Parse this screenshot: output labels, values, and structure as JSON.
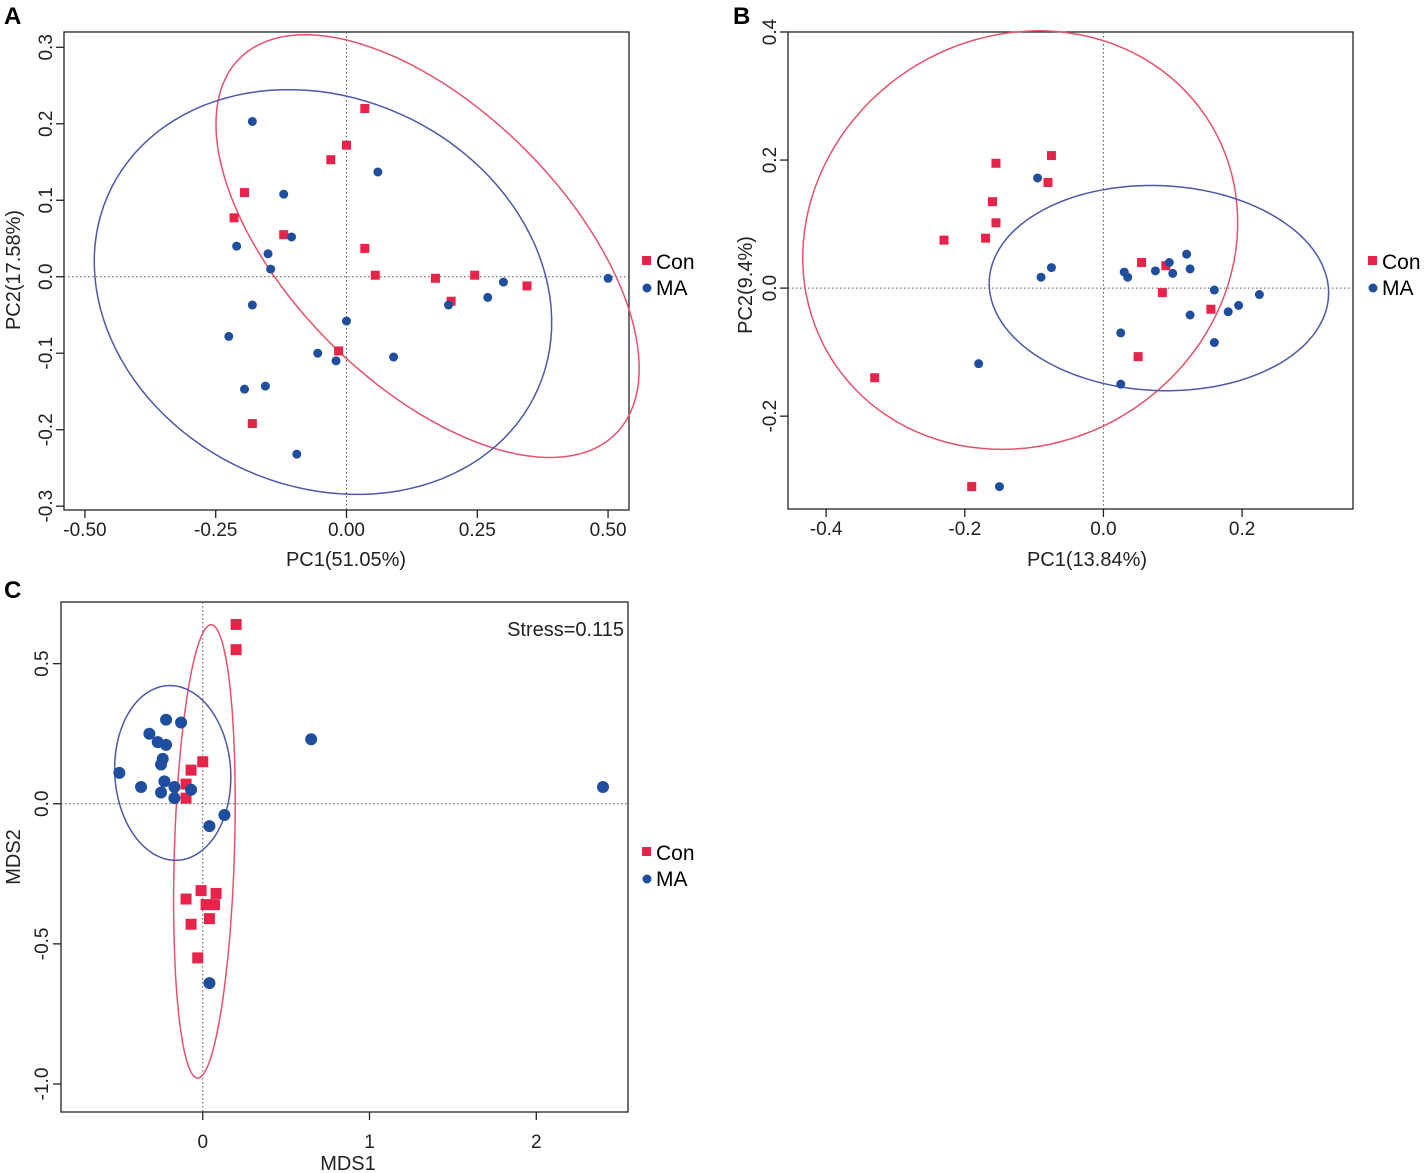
{
  "colors": {
    "con": "#e8234a",
    "ma": "#1f4e9e",
    "con_ellipse": "#e8506c",
    "ma_ellipse": "#4a59a8"
  },
  "chart_data": [
    {
      "panel": "A",
      "type": "scatter",
      "xlabel": "PC1(51.05%)",
      "ylabel": "PC2(17.58%)",
      "xlim": [
        -0.54,
        0.54
      ],
      "ylim": [
        -0.305,
        0.32
      ],
      "xticks": [
        -0.5,
        -0.25,
        0.0,
        0.25,
        0.5
      ],
      "xtick_labels": [
        "-0.50",
        "-0.25",
        "0.00",
        "0.25",
        "0.50"
      ],
      "yticks": [
        -0.3,
        -0.2,
        -0.1,
        0.0,
        0.1,
        0.2,
        0.3
      ],
      "ytick_labels": [
        "-0.3",
        "-0.2",
        "-0.1",
        "0.0",
        "0.1",
        "0.2",
        "0.3"
      ],
      "refline_x": 0,
      "refline_y": 0,
      "legend": [
        {
          "label": "Con",
          "marker": "square"
        },
        {
          "label": "MA",
          "marker": "circle"
        }
      ],
      "series": [
        {
          "name": "Con",
          "marker": "square",
          "points": [
            [
              0.035,
              0.22
            ],
            [
              0.0,
              0.172
            ],
            [
              -0.03,
              0.153
            ],
            [
              -0.195,
              0.11
            ],
            [
              -0.215,
              0.077
            ],
            [
              -0.12,
              0.055
            ],
            [
              0.035,
              0.037
            ],
            [
              0.055,
              0.002
            ],
            [
              0.17,
              -0.002
            ],
            [
              0.245,
              0.002
            ],
            [
              0.345,
              -0.012
            ],
            [
              0.2,
              -0.032
            ],
            [
              -0.015,
              -0.097
            ],
            [
              -0.18,
              -0.192
            ]
          ]
        },
        {
          "name": "MA",
          "marker": "circle",
          "points": [
            [
              -0.18,
              0.203
            ],
            [
              0.06,
              0.137
            ],
            [
              -0.12,
              0.108
            ],
            [
              -0.105,
              0.052
            ],
            [
              -0.21,
              0.04
            ],
            [
              -0.15,
              0.03
            ],
            [
              -0.145,
              0.01
            ],
            [
              -0.18,
              -0.037
            ],
            [
              -0.225,
              -0.078
            ],
            [
              0.0,
              -0.058
            ],
            [
              -0.055,
              -0.1
            ],
            [
              -0.02,
              -0.11
            ],
            [
              0.09,
              -0.105
            ],
            [
              -0.195,
              -0.147
            ],
            [
              -0.155,
              -0.143
            ],
            [
              -0.095,
              -0.232
            ],
            [
              0.3,
              -0.007
            ],
            [
              0.5,
              -0.002
            ],
            [
              0.27,
              -0.027
            ],
            [
              0.195,
              -0.037
            ]
          ]
        }
      ],
      "ellipses": [
        {
          "name": "Con",
          "cx": 0.155,
          "cy": 0.04,
          "rx": 0.445,
          "ry": 0.205,
          "angle_deg": -28
        },
        {
          "name": "MA",
          "cx": -0.045,
          "cy": -0.02,
          "rx": 0.44,
          "ry": 0.26,
          "angle_deg": -8
        }
      ]
    },
    {
      "panel": "B",
      "type": "scatter",
      "xlabel": "PC1(13.84%)",
      "ylabel": "PC2(9.4%)",
      "xlim": [
        -0.455,
        0.36
      ],
      "ylim": [
        -0.345,
        0.4
      ],
      "xticks": [
        -0.4,
        -0.2,
        0.0,
        0.2
      ],
      "xtick_labels": [
        "-0.4",
        "-0.2",
        "0.0",
        "0.2"
      ],
      "yticks": [
        -0.2,
        0.0,
        0.2,
        0.4
      ],
      "ytick_labels": [
        "-0.2",
        "0.0",
        "0.2",
        "0.4"
      ],
      "refline_x": 0,
      "refline_y": 0,
      "legend": [
        {
          "label": "Con",
          "marker": "square"
        },
        {
          "label": "MA",
          "marker": "circle"
        }
      ],
      "series": [
        {
          "name": "Con",
          "marker": "square",
          "points": [
            [
              -0.075,
              0.207
            ],
            [
              -0.155,
              0.195
            ],
            [
              -0.08,
              0.165
            ],
            [
              -0.16,
              0.135
            ],
            [
              -0.155,
              0.102
            ],
            [
              -0.17,
              0.078
            ],
            [
              -0.23,
              0.075
            ],
            [
              0.055,
              0.04
            ],
            [
              0.09,
              0.035
            ],
            [
              0.085,
              -0.007
            ],
            [
              0.155,
              -0.033
            ],
            [
              0.05,
              -0.107
            ],
            [
              -0.33,
              -0.14
            ],
            [
              -0.19,
              -0.31
            ]
          ]
        },
        {
          "name": "MA",
          "marker": "circle",
          "points": [
            [
              -0.095,
              0.172
            ],
            [
              -0.075,
              0.032
            ],
            [
              -0.09,
              0.017
            ],
            [
              0.03,
              0.025
            ],
            [
              0.035,
              0.017
            ],
            [
              0.075,
              0.027
            ],
            [
              0.095,
              0.04
            ],
            [
              0.1,
              0.023
            ],
            [
              0.12,
              0.053
            ],
            [
              0.125,
              0.03
            ],
            [
              0.16,
              -0.003
            ],
            [
              0.18,
              -0.037
            ],
            [
              0.195,
              -0.027
            ],
            [
              0.225,
              -0.01
            ],
            [
              0.125,
              -0.042
            ],
            [
              0.16,
              -0.085
            ],
            [
              0.025,
              -0.07
            ],
            [
              0.025,
              -0.15
            ],
            [
              -0.18,
              -0.118
            ],
            [
              -0.15,
              -0.31
            ]
          ]
        }
      ],
      "ellipses": [
        {
          "name": "Con",
          "cx": -0.12,
          "cy": 0.075,
          "rx": 0.305,
          "ry": 0.335,
          "angle_deg": -32
        },
        {
          "name": "MA",
          "cx": 0.08,
          "cy": 0.0,
          "rx": 0.245,
          "ry": 0.16,
          "angle_deg": -3
        }
      ]
    },
    {
      "panel": "C",
      "type": "scatter",
      "xlabel": "MDS1",
      "ylabel": "MDS2",
      "xlim": [
        -0.85,
        2.55
      ],
      "ylim": [
        -1.1,
        0.72
      ],
      "xticks": [
        0,
        1,
        2
      ],
      "xtick_labels": [
        "0",
        "1",
        "2"
      ],
      "yticks": [
        -1.0,
        -0.5,
        0.0,
        0.5
      ],
      "ytick_labels": [
        "-1.0",
        "-0.5",
        "0.0",
        "0.5"
      ],
      "refline_x": 0,
      "refline_y": 0,
      "annotation": "Stress=0.115",
      "legend": [
        {
          "label": "Con",
          "marker": "square"
        },
        {
          "label": "MA",
          "marker": "circle"
        }
      ],
      "series": [
        {
          "name": "Con",
          "marker": "square",
          "points": [
            [
              0.2,
              0.64
            ],
            [
              0.2,
              0.55
            ],
            [
              0.0,
              0.15
            ],
            [
              -0.07,
              0.12
            ],
            [
              -0.1,
              0.07
            ],
            [
              -0.1,
              0.02
            ],
            [
              -0.01,
              -0.31
            ],
            [
              -0.1,
              -0.34
            ],
            [
              0.08,
              -0.32
            ],
            [
              0.02,
              -0.36
            ],
            [
              0.07,
              -0.36
            ],
            [
              0.04,
              -0.41
            ],
            [
              -0.07,
              -0.43
            ],
            [
              -0.03,
              -0.55
            ]
          ]
        },
        {
          "name": "MA",
          "marker": "circle",
          "points": [
            [
              -0.22,
              0.3
            ],
            [
              -0.13,
              0.29
            ],
            [
              -0.32,
              0.25
            ],
            [
              -0.27,
              0.22
            ],
            [
              -0.22,
              0.21
            ],
            [
              -0.24,
              0.16
            ],
            [
              -0.25,
              0.14
            ],
            [
              -0.5,
              0.11
            ],
            [
              -0.23,
              0.08
            ],
            [
              -0.37,
              0.06
            ],
            [
              -0.17,
              0.06
            ],
            [
              -0.25,
              0.04
            ],
            [
              -0.07,
              0.05
            ],
            [
              -0.17,
              0.02
            ],
            [
              0.13,
              -0.04
            ],
            [
              0.04,
              -0.08
            ],
            [
              0.65,
              0.23
            ],
            [
              2.4,
              0.06
            ],
            [
              0.04,
              -0.64
            ]
          ]
        }
      ],
      "ellipses": [
        {
          "name": "Con",
          "cx": 0.01,
          "cy": -0.17,
          "rx": 0.18,
          "ry": 0.81,
          "angle_deg": -3
        },
        {
          "name": "MA",
          "cx": -0.18,
          "cy": 0.11,
          "rx": 0.35,
          "ry": 0.31,
          "angle_deg": -12
        }
      ]
    }
  ]
}
